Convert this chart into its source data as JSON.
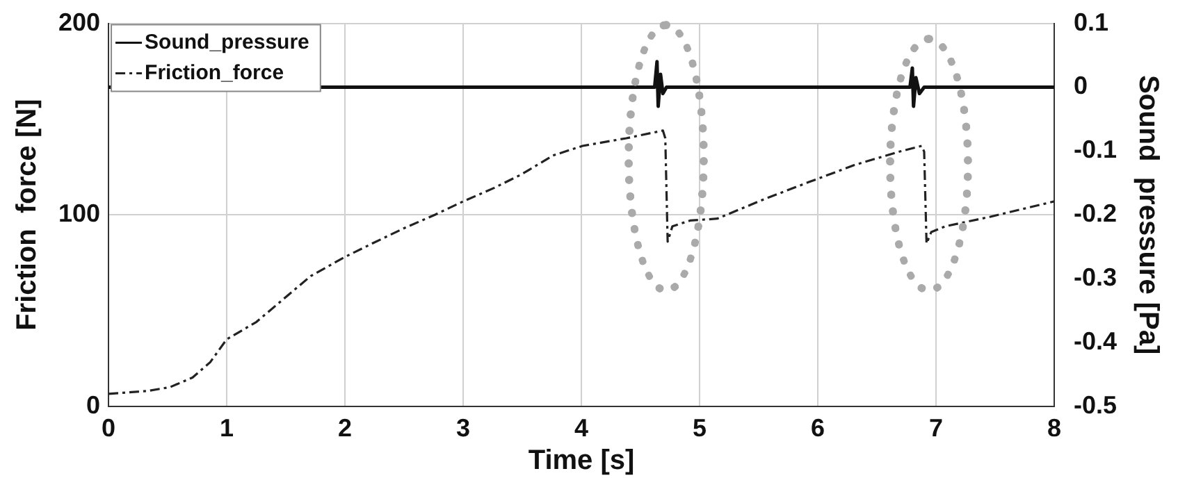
{
  "chart_data": {
    "type": "line",
    "xlabel": "Time [s]",
    "ylabel": "Friction  force [N]",
    "y2label": "Sound  pressure [Pa]",
    "xlim": [
      0,
      8
    ],
    "xticks": [
      0,
      1,
      2,
      3,
      4,
      5,
      6,
      7,
      8
    ],
    "ylim": [
      0,
      200
    ],
    "yticks": [
      0,
      100,
      200
    ],
    "y2lim": [
      -0.5,
      0.1
    ],
    "y2ticks": [
      -0.5,
      -0.4,
      -0.3,
      -0.2,
      -0.1,
      0,
      0.1
    ],
    "grid": true,
    "legend": "top left",
    "marker": "none",
    "series": [
      {
        "name": "Sound_pressure",
        "color": "#111111",
        "axis": "y2",
        "line_style": "solid",
        "x": [
          0,
          4.62,
          4.64,
          4.65,
          4.67,
          4.69,
          4.72,
          6.78,
          6.8,
          6.81,
          6.83,
          6.86,
          6.9,
          8
        ],
        "values": [
          0,
          0,
          0.04,
          -0.03,
          0.02,
          -0.01,
          0,
          0,
          0.03,
          -0.03,
          0.015,
          -0.01,
          0,
          0
        ]
      },
      {
        "name": "Friction_force",
        "color": "#222222",
        "axis": "y",
        "line_style": "dashed",
        "x": [
          0,
          0.33,
          0.52,
          0.71,
          0.86,
          1.0,
          1.25,
          1.48,
          1.71,
          2.0,
          2.23,
          2.5,
          2.76,
          3.0,
          3.26,
          3.49,
          3.76,
          4.01,
          4.38,
          4.69,
          4.71,
          4.73,
          4.77,
          4.92,
          5.15,
          5.54,
          5.92,
          6.31,
          6.69,
          6.88,
          6.9,
          6.92,
          6.96,
          7.08,
          7.46,
          8.0
        ],
        "values": [
          6.5,
          8,
          10,
          15,
          23,
          35,
          44,
          56,
          68,
          78,
          85,
          93,
          100,
          107,
          114,
          121,
          131,
          136,
          140,
          144,
          140,
          86,
          94,
          97,
          98,
          108,
          117,
          126,
          133,
          136,
          133,
          85,
          91,
          94,
          99,
          107
        ]
      }
    ]
  }
}
